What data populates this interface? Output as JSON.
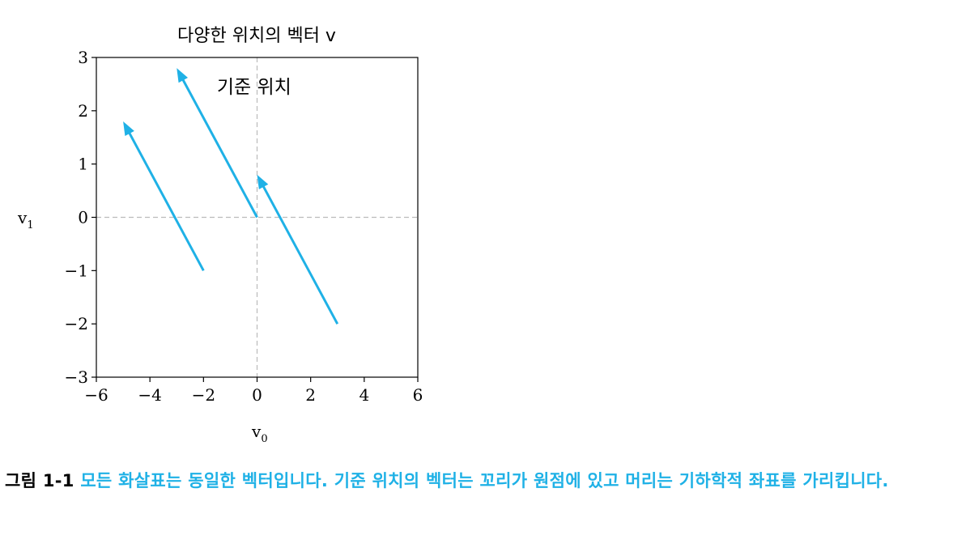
{
  "chart_data": {
    "type": "vector",
    "title": "다양한 위치의 벡터 v",
    "xlabel": "v",
    "xlabel_sub": "0",
    "ylabel": "v",
    "ylabel_sub": "1",
    "xlim": [
      -6,
      6
    ],
    "ylim": [
      -3,
      3
    ],
    "xticks": [
      -6,
      -4,
      -2,
      0,
      2,
      4,
      6
    ],
    "yticks": [
      -3,
      -2,
      -1,
      0,
      1,
      2,
      3
    ],
    "xtick_labels": [
      "−6",
      "−4",
      "−2",
      "0",
      "2",
      "4",
      "6"
    ],
    "ytick_labels": [
      "−3",
      "−2",
      "−1",
      "0",
      "1",
      "2",
      "3"
    ],
    "grid": false,
    "reference_lines": {
      "x": 0,
      "y": 0,
      "style": "dashed",
      "color": "#bbbbbb"
    },
    "vector": [
      -3,
      2.8
    ],
    "arrow_color": "#1fb1e6",
    "arrows": [
      {
        "tail": [
          -2,
          -1
        ],
        "head": [
          -5,
          1.8
        ]
      },
      {
        "tail": [
          0,
          0
        ],
        "head": [
          -3,
          2.8
        ]
      },
      {
        "tail": [
          3,
          -2
        ],
        "head": [
          0,
          0.8
        ]
      }
    ],
    "annotation": {
      "text": "기준 위치",
      "x": -1.5,
      "y": 2.45
    }
  },
  "caption": {
    "label": "그림 1-1",
    "text": " 모든 화살표는 동일한 벡터입니다. 기준 위치의 벡터는 꼬리가 원점에 있고 머리는 기하학적 좌표를 가리킵니다."
  }
}
